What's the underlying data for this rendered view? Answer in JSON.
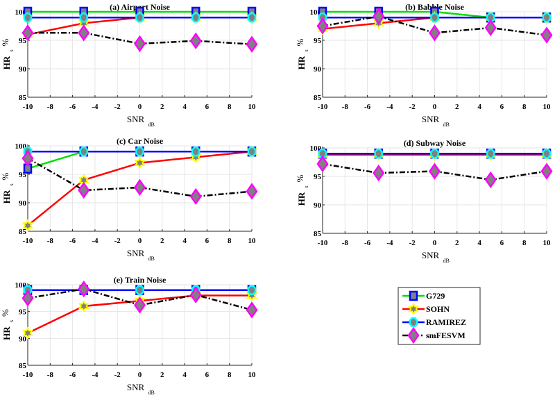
{
  "chart_data": {
    "type": "line",
    "figure_layout": "3x2 grid of subplots with legend in bottom-right cell",
    "series_styles": [
      {
        "name": "G729",
        "color": "#00e000",
        "marker": "square",
        "marker_edge": "#0000ff",
        "marker_fill": "#808080",
        "line_style": "solid"
      },
      {
        "name": "SOHN",
        "color": "#ff0000",
        "marker": "hexagram",
        "marker_edge": "#ffff00",
        "marker_fill": "#808080",
        "line_style": "solid"
      },
      {
        "name": "RAMIREZ",
        "color": "#0000ff",
        "marker": "octagon",
        "marker_edge": "#00ffff",
        "marker_fill": "#808080",
        "line_style": "solid"
      },
      {
        "name": "smFESVM",
        "color": "#000000",
        "marker": "diamond",
        "marker_edge": "#ff00ff",
        "marker_fill": "#808080",
        "line_style": "dash-dot"
      }
    ],
    "legend": {
      "entries": [
        "G729",
        "SOHN",
        "RAMIREZ",
        "smFESVM"
      ],
      "placement": "bottom-right"
    },
    "subplots": [
      {
        "title": "(a) Airport Noise",
        "xlabel": "SNR",
        "xlabel_sub": "dB",
        "ylabel": "HR",
        "ylabel_sub": "s",
        "ylabel_suffix": "%",
        "xlim": [
          -10,
          10
        ],
        "ylim": [
          85,
          100
        ],
        "xticks": [
          "-10",
          "-8",
          "-6",
          "-4",
          "-2",
          "0",
          "2",
          "4",
          "6",
          "8",
          "10"
        ],
        "yticks": [
          "85",
          "90",
          "95",
          "100"
        ],
        "grid": true,
        "x": [
          -10,
          -5,
          0,
          5,
          10
        ],
        "series": [
          {
            "name": "G729",
            "values": [
              100,
              100,
              100,
              100,
              100
            ]
          },
          {
            "name": "SOHN",
            "values": [
              96,
              98,
              99,
              99,
              99
            ]
          },
          {
            "name": "RAMIREZ",
            "values": [
              99,
              99,
              99,
              99,
              99
            ]
          },
          {
            "name": "smFESVM",
            "values": [
              96.3,
              96.3,
              94.4,
              94.9,
              94.3
            ]
          }
        ]
      },
      {
        "title": "(b) Babble Noise",
        "xlabel": "SNR",
        "xlabel_sub": "dB",
        "ylabel": "HR",
        "ylabel_sub": "s",
        "ylabel_suffix": "%",
        "xlim": [
          -10,
          10
        ],
        "ylim": [
          85,
          100
        ],
        "xticks": [
          "-10",
          "-8",
          "-6",
          "-4",
          "-2",
          "0",
          "2",
          "4",
          "6",
          "8",
          "10"
        ],
        "yticks": [
          "85",
          "90",
          "95",
          "100"
        ],
        "grid": true,
        "x": [
          -10,
          -5,
          0,
          5,
          10
        ],
        "series": [
          {
            "name": "G729",
            "values": [
              100,
              100,
              100,
              99,
              99
            ]
          },
          {
            "name": "SOHN",
            "values": [
              97,
              98,
              99,
              99,
              99
            ]
          },
          {
            "name": "RAMIREZ",
            "values": [
              99,
              99,
              99,
              99,
              99
            ]
          },
          {
            "name": "smFESVM",
            "values": [
              97.5,
              99.2,
              96.3,
              97.2,
              95.9
            ]
          }
        ]
      },
      {
        "title": "(c) Car Noise",
        "xlabel": "SNR",
        "xlabel_sub": "dB",
        "ylabel": "HR",
        "ylabel_sub": "s",
        "ylabel_suffix": "%",
        "xlim": [
          -10,
          10
        ],
        "ylim": [
          85,
          100
        ],
        "xticks": [
          "-10",
          "-8",
          "-6",
          "-4",
          "-2",
          "0",
          "2",
          "4",
          "6",
          "8",
          "10"
        ],
        "yticks": [
          "85",
          "90",
          "95",
          "100"
        ],
        "grid": true,
        "x": [
          -10,
          -5,
          0,
          5,
          10
        ],
        "series": [
          {
            "name": "G729",
            "values": [
              96,
              99,
              99,
              99,
              99
            ]
          },
          {
            "name": "SOHN",
            "values": [
              86,
              94,
              97,
              98,
              99
            ]
          },
          {
            "name": "RAMIREZ",
            "values": [
              99,
              99,
              99,
              99,
              99
            ]
          },
          {
            "name": "smFESVM",
            "values": [
              97.8,
              92.2,
              92.7,
              91.1,
              92
            ]
          }
        ]
      },
      {
        "title": "(d) Subway Noise",
        "xlabel": "SNR",
        "xlabel_sub": "dB",
        "ylabel": "HR",
        "ylabel_sub": "s",
        "ylabel_suffix": "%",
        "xlim": [
          -10,
          10
        ],
        "ylim": [
          85,
          100
        ],
        "xticks": [
          "-10",
          "-8",
          "-6",
          "-4",
          "-2",
          "0",
          "2",
          "4",
          "6",
          "8",
          "10"
        ],
        "yticks": [
          "85",
          "90",
          "95",
          "100"
        ],
        "grid": true,
        "x": [
          -10,
          -5,
          0,
          5,
          10
        ],
        "series": [
          {
            "name": "G729",
            "values": [
              99,
              99,
              99,
              99,
              99
            ]
          },
          {
            "name": "SOHN",
            "values": [
              98.8,
              98.8,
              98.8,
              98.8,
              98.8
            ]
          },
          {
            "name": "RAMIREZ",
            "values": [
              99,
              99,
              99,
              99,
              99
            ]
          },
          {
            "name": "smFESVM",
            "values": [
              97.2,
              95.6,
              95.9,
              94.4,
              95.9
            ]
          }
        ]
      },
      {
        "title": "(e) Train Noise",
        "xlabel": "SNR",
        "xlabel_sub": "dB",
        "ylabel": "HR",
        "ylabel_sub": "s",
        "ylabel_suffix": "%",
        "xlim": [
          -10,
          10
        ],
        "ylim": [
          85,
          100
        ],
        "xticks": [
          "-10",
          "-8",
          "-6",
          "-4",
          "-2",
          "0",
          "2",
          "4",
          "6",
          "8",
          "10"
        ],
        "yticks": [
          "85",
          "90",
          "95",
          "100"
        ],
        "grid": true,
        "x": [
          -10,
          -5,
          0,
          5,
          10
        ],
        "series": [
          {
            "name": "G729",
            "values": [
              99,
              99,
              99,
              99,
              99
            ]
          },
          {
            "name": "SOHN",
            "values": [
              91,
              96,
              97,
              98,
              98
            ]
          },
          {
            "name": "RAMIREZ",
            "values": [
              99,
              99,
              99,
              99,
              99
            ]
          },
          {
            "name": "smFESVM",
            "values": [
              97.5,
              99.2,
              96.2,
              98.1,
              95.3
            ]
          }
        ]
      }
    ]
  }
}
